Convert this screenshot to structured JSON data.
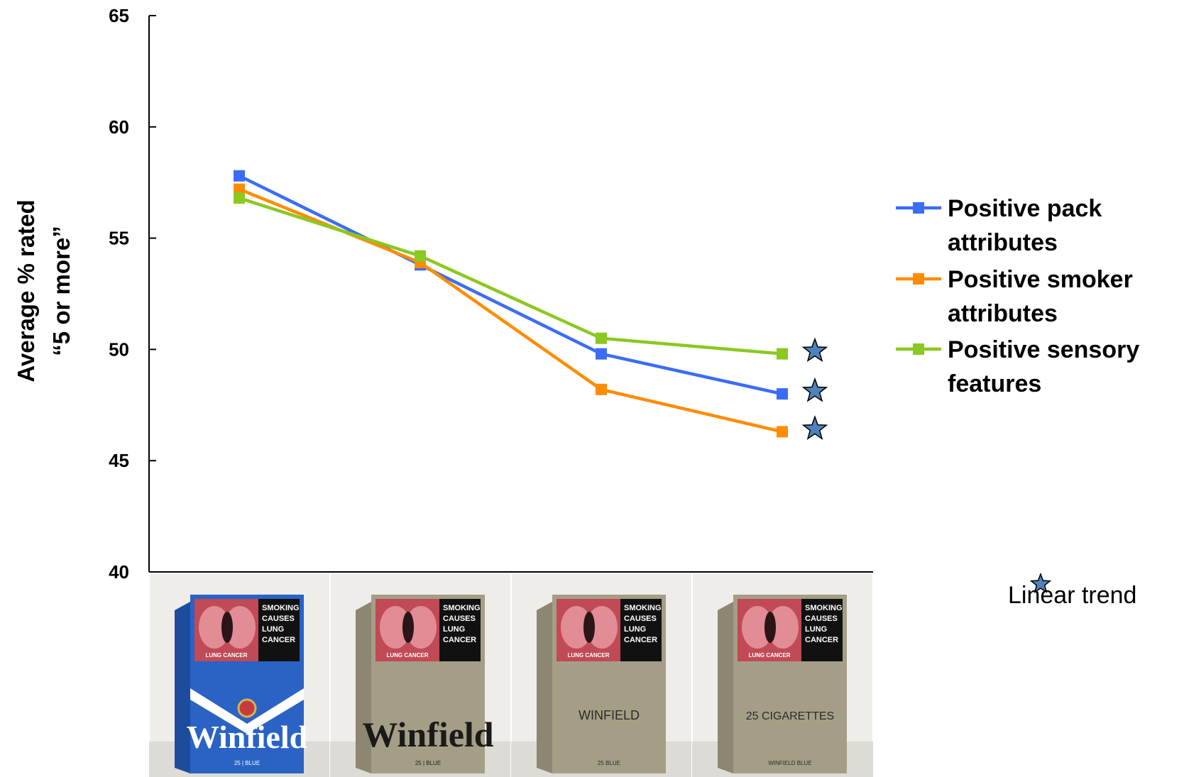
{
  "chart_data": {
    "type": "line",
    "ylabel_lines": [
      "Average % rated",
      "“5 or more”"
    ],
    "ylim": [
      40,
      65
    ],
    "yticks": [
      40,
      45,
      50,
      55,
      60,
      65
    ],
    "grid": false,
    "legend_position": "right",
    "categories": [
      "Branded pack",
      "Plain pack with brand",
      "Plain pack with name",
      "Plain pack 25 cigarettes"
    ],
    "series": [
      {
        "name": "Positive pack attributes",
        "legend_lines": [
          "Positive pack",
          "attributes"
        ],
        "color": "#3b6cf6",
        "values": [
          57.8,
          53.8,
          49.8,
          48.0
        ]
      },
      {
        "name": "Positive smoker attributes",
        "legend_lines": [
          "Positive smoker",
          "attributes"
        ],
        "color": "#ff8c00",
        "values": [
          57.2,
          53.9,
          48.2,
          46.3
        ]
      },
      {
        "name": "Positive sensory features",
        "legend_lines": [
          "Positive sensory",
          "features"
        ],
        "color": "#8bc820",
        "values": [
          56.8,
          54.2,
          50.5,
          49.8
        ]
      }
    ],
    "annotations": {
      "star_color": "#4f81bd",
      "note_text": "Linear trend"
    }
  },
  "packs": [
    {
      "warning_lines": [
        "SMOKING",
        "CAUSES",
        "LUNG",
        "CANCER"
      ],
      "photo_caption": "LUNG CANCER",
      "brand_text": "Winfield",
      "sub_text": "25 | BLUE",
      "body_color": "#2a63c4",
      "brand_color": "#ffffff"
    },
    {
      "warning_lines": [
        "SMOKING",
        "CAUSES",
        "LUNG",
        "CANCER"
      ],
      "photo_caption": "LUNG CANCER",
      "brand_text": "Winfield",
      "sub_text": "25 | BLUE",
      "body_color": "#a59e86",
      "brand_color": "#1a1a1a"
    },
    {
      "warning_lines": [
        "SMOKING",
        "CAUSES",
        "LUNG",
        "CANCER"
      ],
      "photo_caption": "LUNG CANCER",
      "brand_text": "WINFIELD",
      "sub_text": "25 BLUE",
      "body_color": "#a59e86",
      "brand_color": "#2a2a2a"
    },
    {
      "warning_lines": [
        "SMOKING",
        "CAUSES",
        "LUNG",
        "CANCER"
      ],
      "photo_caption": "LUNG CANCER",
      "brand_text": "25 CIGARETTES",
      "sub_text": "WINFIELD BLUE",
      "body_color": "#a59e86",
      "brand_color": "#2a2a2a"
    }
  ]
}
